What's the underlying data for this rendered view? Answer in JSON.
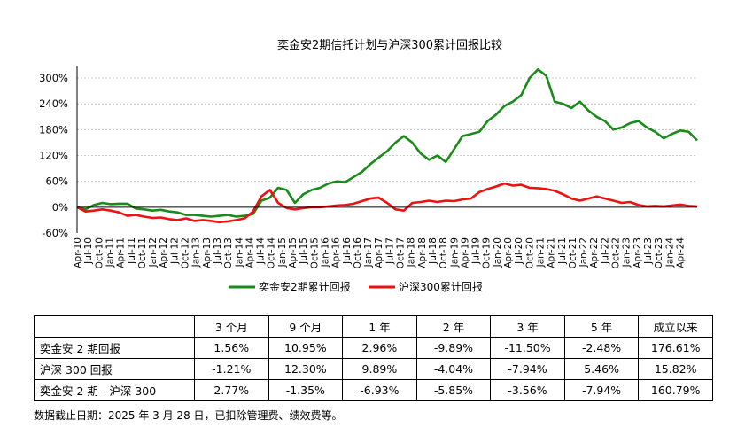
{
  "chart_data": {
    "type": "line",
    "title": "奕金安2期信托计划与沪深300累计回报比较",
    "y_ticks": [
      "300%",
      "240%",
      "180%",
      "120%",
      "60%",
      "0%",
      "-60%"
    ],
    "y_tick_values": [
      300,
      240,
      180,
      120,
      60,
      0,
      -60
    ],
    "ylim": [
      -60,
      300
    ],
    "grid": true,
    "legend_position": "bottom",
    "x_ticks": [
      "Apr-10",
      "Jul-10",
      "Oct-10",
      "Jan-11",
      "Apr-11",
      "Jul-11",
      "Oct-11",
      "Jan-12",
      "Apr-12",
      "Jul-12",
      "Oct-12",
      "Jan-13",
      "Apr-13",
      "Jul-13",
      "Oct-13",
      "Jan-14",
      "Apr-14",
      "Jul-14",
      "Oct-14",
      "Jan-15",
      "Apr-15",
      "Jul-15",
      "Oct-15",
      "Jan-16",
      "Apr-16",
      "Jul-16",
      "Oct-16",
      "Jan-17",
      "Apr-17",
      "Jul-17",
      "Oct-17",
      "Jan-18",
      "Apr-18",
      "Jul-18",
      "Oct-18",
      "Jan-19",
      "Apr-19",
      "Jul-19",
      "Oct-19",
      "Jan-20",
      "Apr-20",
      "Jul-20",
      "Oct-20",
      "Jan-21",
      "Apr-21",
      "Jul-21",
      "Oct-21",
      "Jan-22",
      "Apr-22",
      "Jul-22",
      "Oct-22",
      "Jan-23",
      "Apr-23",
      "Jul-23",
      "Oct-23",
      "Jan-24",
      "Apr-24"
    ],
    "series": [
      {
        "name": "奕金安2期累计回报",
        "color": "#1a8a1a",
        "values": [
          0,
          -5,
          5,
          10,
          7,
          8,
          8,
          -3,
          -5,
          -8,
          -6,
          -10,
          -12,
          -18,
          -18,
          -20,
          -22,
          -20,
          -18,
          -22,
          -20,
          -16,
          15,
          22,
          45,
          40,
          10,
          30,
          40,
          45,
          55,
          60,
          58,
          70,
          82,
          100,
          115,
          130,
          150,
          165,
          150,
          125,
          110,
          120,
          105,
          135,
          165,
          170,
          175,
          200,
          215,
          235,
          245,
          260,
          300,
          320,
          305,
          245,
          240,
          230,
          245,
          225,
          210,
          200,
          180,
          185,
          195,
          200,
          185,
          175,
          160,
          170,
          178,
          175,
          155
        ]
      },
      {
        "name": "沪深300累计回报",
        "color": "#ee1111",
        "values": [
          0,
          -10,
          -8,
          -5,
          -8,
          -12,
          -20,
          -18,
          -22,
          -25,
          -24,
          -28,
          -30,
          -26,
          -32,
          -30,
          -32,
          -35,
          -33,
          -30,
          -26,
          -10,
          25,
          40,
          10,
          -2,
          -5,
          -2,
          0,
          0,
          2,
          4,
          5,
          8,
          14,
          20,
          22,
          10,
          -5,
          -8,
          10,
          12,
          15,
          12,
          15,
          14,
          18,
          20,
          35,
          42,
          48,
          55,
          50,
          52,
          45,
          44,
          42,
          38,
          30,
          20,
          15,
          20,
          25,
          20,
          15,
          10,
          12,
          5,
          2,
          3,
          2,
          4,
          6,
          3,
          2
        ]
      }
    ]
  },
  "table": {
    "headers": [
      "",
      "3 个月",
      "9 个月",
      "1 年",
      "2 年",
      "3 年",
      "5 年",
      "成立以来"
    ],
    "rows": [
      {
        "label": "奕金安 2 期回报",
        "values": [
          "1.56%",
          "10.95%",
          "2.96%",
          "-9.89%",
          "-11.50%",
          "-2.48%",
          "176.61%"
        ]
      },
      {
        "label": "沪深 300 回报",
        "values": [
          "-1.21%",
          "12.30%",
          "9.89%",
          "-4.04%",
          "-7.94%",
          "5.46%",
          "15.82%"
        ]
      },
      {
        "label": "奕金安 2 期 - 沪深 300",
        "values": [
          "2.77%",
          "-1.35%",
          "-6.93%",
          "-5.85%",
          "-3.56%",
          "-7.94%",
          "160.79%"
        ]
      }
    ]
  },
  "footnote": "数据截止日期：2025 年 3 月 28 日，已扣除管理费、绩效费等。"
}
